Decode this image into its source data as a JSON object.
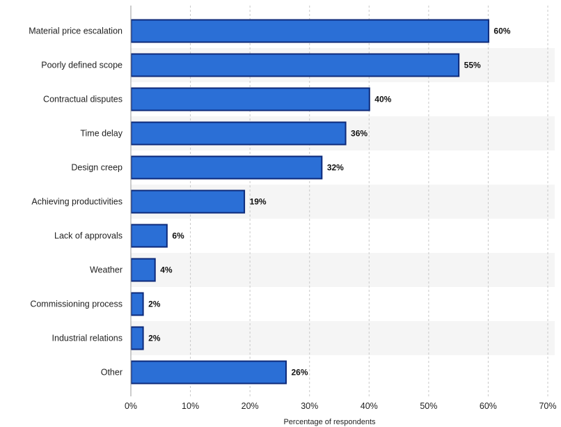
{
  "chart_data": {
    "type": "bar",
    "orientation": "horizontal",
    "categories": [
      "Material price escalation",
      "Poorly defined scope",
      "Contractual disputes",
      "Time delay",
      "Design creep",
      "Achieving productivities",
      "Lack of approvals",
      "Weather",
      "Commissioning process",
      "Industrial relations",
      "Other"
    ],
    "values": [
      60,
      55,
      40,
      36,
      32,
      19,
      6,
      4,
      2,
      2,
      26
    ],
    "value_labels": [
      "60%",
      "55%",
      "40%",
      "36%",
      "32%",
      "19%",
      "6%",
      "4%",
      "2%",
      "2%",
      "26%"
    ],
    "xlabel": "Percentage of respondents",
    "ylabel": "",
    "title": "",
    "xlim": [
      0,
      70
    ],
    "xticks": [
      0,
      10,
      20,
      30,
      40,
      50,
      60,
      70
    ],
    "xtick_labels": [
      "0%",
      "10%",
      "20%",
      "30%",
      "40%",
      "50%",
      "60%",
      "70%"
    ],
    "grid": "vertical dashed",
    "legend": "none",
    "colors": {
      "bar_fill": "#2b6fd6",
      "bar_edge": "#0d2a7a",
      "band_alt": "#f5f5f5",
      "grid": "#c8c8c8"
    }
  }
}
